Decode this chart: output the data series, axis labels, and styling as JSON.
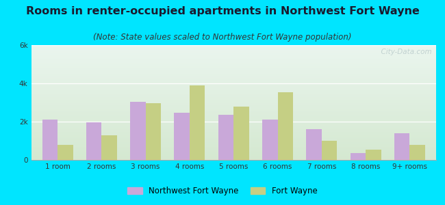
{
  "title": "Rooms in renter-occupied apartments in Northwest Fort Wayne",
  "subtitle": "(Note: State values scaled to Northwest Fort Wayne population)",
  "categories": [
    "1 room",
    "2 rooms",
    "3 rooms",
    "4 rooms",
    "5 rooms",
    "6 rooms",
    "7 rooms",
    "8 rooms",
    "9+ rooms"
  ],
  "nfw_values": [
    2100,
    1950,
    3050,
    2450,
    2350,
    2100,
    1600,
    350,
    1400
  ],
  "fw_values": [
    800,
    1300,
    2950,
    3900,
    2800,
    3550,
    1000,
    550,
    800
  ],
  "nfw_color": "#c9a8d9",
  "fw_color": "#c5cf84",
  "bg_outer": "#00e5ff",
  "ylim": [
    0,
    6000
  ],
  "yticks": [
    0,
    2000,
    4000,
    6000
  ],
  "ytick_labels": [
    "0",
    "2k",
    "4k",
    "6k"
  ],
  "title_fontsize": 11.5,
  "subtitle_fontsize": 8.5,
  "watermark": "  City-Data.com",
  "legend_nfw": "Northwest Fort Wayne",
  "legend_fw": "Fort Wayne"
}
